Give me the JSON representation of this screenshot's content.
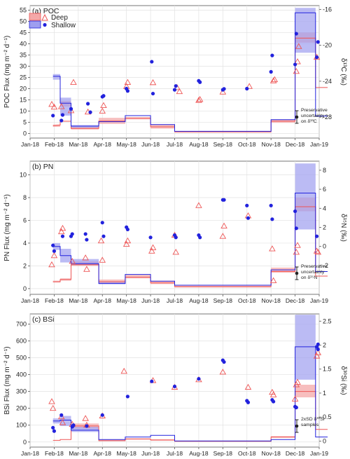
{
  "legend": {
    "deep_label": "Deep",
    "shallow_label": "Shallow",
    "colors": {
      "deep": "#ee5555",
      "shallow": "#2222dd",
      "deep_fill": "#f4a8a8",
      "shallow_fill": "#9e9ef0"
    }
  },
  "months": [
    "Jan-18",
    "Feb-18",
    "Mar-18",
    "Apr-18",
    "May-18",
    "Jun-18",
    "Jul-18",
    "Aug-18",
    "Sep-18",
    "Oct-18",
    "Nov-18",
    "Dec-18",
    "Jan-19"
  ],
  "chart_data": [
    {
      "type": "scatter",
      "panel_label": "(a) POC",
      "ylabel": "POC Flux (mg m⁻² d⁻¹)",
      "y2label": "δ¹³C (‰)",
      "ylim": [
        -2,
        57
      ],
      "yticks": [
        0,
        5,
        10,
        15,
        20,
        25,
        30,
        35,
        40,
        45,
        50,
        55
      ],
      "y2lim": [
        -30.33,
        -15.58
      ],
      "y2ticks": [
        -28,
        -24,
        -20,
        -16
      ],
      "note": [
        "Preservative",
        "uncertainty",
        "on δ¹³C"
      ],
      "flux_deep": [
        [
          0.95,
          3.5
        ],
        [
          1.25,
          3.8
        ],
        [
          1.25,
          5.5
        ],
        [
          1.7,
          5.5
        ],
        [
          1.7,
          2.3
        ],
        [
          2.85,
          2.3
        ],
        [
          2.85,
          5.6
        ],
        [
          3.95,
          5.6
        ],
        [
          3.95,
          6.8
        ],
        [
          5.0,
          6.8
        ],
        [
          5.0,
          3.0
        ],
        [
          6.0,
          3.0
        ],
        [
          6.0,
          0.8
        ],
        [
          10.0,
          0.8
        ],
        [
          10.0,
          5.5
        ],
        [
          11.0,
          5.5
        ],
        [
          11.0,
          42.5
        ],
        [
          11.85,
          42.5
        ],
        [
          11.85,
          20.5
        ],
        [
          12.35,
          20.5
        ]
      ],
      "flux_shallow": [
        [
          0.95,
          25.5
        ],
        [
          1.25,
          25.5
        ],
        [
          1.25,
          13.5
        ],
        [
          1.7,
          13.5
        ],
        [
          1.7,
          3.3
        ],
        [
          2.85,
          3.3
        ],
        [
          2.85,
          5.3
        ],
        [
          3.95,
          5.3
        ],
        [
          3.95,
          8.0
        ],
        [
          5.0,
          8.0
        ],
        [
          5.0,
          4.0
        ],
        [
          6.0,
          4.0
        ],
        [
          6.0,
          1.0
        ],
        [
          10.0,
          1.0
        ],
        [
          10.0,
          6.2
        ],
        [
          11.0,
          6.2
        ],
        [
          11.0,
          53.8
        ],
        [
          11.85,
          53.8
        ],
        [
          11.85,
          7.8
        ],
        [
          12.35,
          7.8
        ]
      ],
      "bands_deep": [
        [
          0.95,
          1.25,
          3.0,
          4.0
        ],
        [
          1.25,
          1.7,
          12.0,
          14.5
        ],
        [
          1.7,
          2.85,
          1.8,
          3.0
        ],
        [
          2.85,
          3.95,
          4.3,
          7.0
        ],
        [
          3.95,
          5.0,
          6.3,
          7.3
        ],
        [
          5.0,
          6.0,
          2.2,
          4.0
        ],
        [
          6.0,
          10.0,
          0.4,
          1.1
        ],
        [
          10.0,
          11.0,
          4.8,
          6.3
        ],
        [
          11.0,
          11.85,
          40.5,
          45.0
        ]
      ],
      "bands_shallow": [
        [
          0.95,
          1.25,
          24.0,
          26.5
        ],
        [
          1.25,
          1.7,
          8.0,
          16.0
        ],
        [
          1.7,
          2.85,
          2.6,
          3.8
        ],
        [
          11.0,
          11.85,
          36.0,
          56.0
        ]
      ],
      "iso_deep": [
        [
          0.9,
          13.0
        ],
        [
          1.0,
          11.8
        ],
        [
          1.3,
          12.0
        ],
        [
          1.7,
          10.2
        ],
        [
          1.8,
          22.8
        ],
        [
          2.4,
          9.6
        ],
        [
          3.0,
          10.0
        ],
        [
          3.05,
          12.5
        ],
        [
          4.0,
          21.0
        ],
        [
          4.05,
          22.8
        ],
        [
          5.1,
          22.7
        ],
        [
          6.1,
          20.5
        ],
        [
          6.2,
          18.7
        ],
        [
          7.0,
          14.8
        ],
        [
          7.05,
          15.2
        ],
        [
          8.0,
          18.5
        ],
        [
          9.1,
          21.0
        ],
        [
          10.1,
          23.5
        ],
        [
          10.15,
          24.0
        ],
        [
          11.05,
          27.7
        ],
        [
          11.1,
          32.0
        ],
        [
          11.15,
          38.8
        ],
        [
          11.9,
          34.0
        ]
      ],
      "iso_shallow": [
        [
          0.95,
          8.0
        ],
        [
          1.3,
          5.8
        ],
        [
          1.35,
          8.3
        ],
        [
          1.7,
          11.0
        ],
        [
          2.4,
          13.3
        ],
        [
          2.5,
          9.5
        ],
        [
          3.0,
          16.4
        ],
        [
          3.05,
          16.8
        ],
        [
          4.0,
          20.0
        ],
        [
          4.05,
          19.0
        ],
        [
          5.05,
          32.0
        ],
        [
          5.1,
          17.8
        ],
        [
          6.0,
          19.5
        ],
        [
          6.05,
          21.2
        ],
        [
          7.0,
          23.5
        ],
        [
          7.05,
          22.9
        ],
        [
          8.0,
          19.5
        ],
        [
          8.05,
          19.9
        ],
        [
          9.0,
          20.0
        ],
        [
          10.0,
          27.5
        ],
        [
          10.05,
          34.8
        ],
        [
          11.0,
          30.8
        ],
        [
          11.05,
          44.5
        ],
        [
          11.9,
          34.0
        ],
        [
          11.95,
          40.8
        ]
      ]
    },
    {
      "type": "scatter",
      "panel_label": "(b) PN",
      "ylabel": "PN Flux (mg m⁻² d⁻¹)",
      "y2label": "δ¹⁵N (‰)",
      "ylim": [
        -0.5,
        11.2
      ],
      "yticks": [
        0,
        2,
        4,
        6,
        8,
        10
      ],
      "y2lim": [
        -5.03,
        8.95
      ],
      "y2ticks": [
        -2,
        0,
        2,
        4,
        6,
        8
      ],
      "note": [
        "Preservative",
        "uncertainty",
        "on δ¹⁵N"
      ],
      "flux_deep": [
        [
          0.95,
          0.6
        ],
        [
          1.25,
          0.6
        ],
        [
          1.25,
          0.8
        ],
        [
          1.7,
          0.8
        ],
        [
          1.7,
          2.1
        ],
        [
          2.85,
          2.1
        ],
        [
          2.85,
          0.6
        ],
        [
          3.95,
          0.6
        ],
        [
          3.95,
          1.0
        ],
        [
          5.0,
          1.0
        ],
        [
          5.0,
          0.5
        ],
        [
          6.0,
          0.5
        ],
        [
          6.0,
          0.18
        ],
        [
          10.0,
          0.18
        ],
        [
          10.0,
          1.5
        ],
        [
          11.0,
          1.5
        ],
        [
          11.0,
          7.2
        ],
        [
          11.85,
          7.2
        ],
        [
          11.85,
          1.1
        ],
        [
          12.35,
          1.1
        ]
      ],
      "flux_shallow": [
        [
          0.95,
          3.7
        ],
        [
          1.25,
          3.7
        ],
        [
          1.25,
          2.9
        ],
        [
          1.7,
          2.9
        ],
        [
          1.7,
          2.2
        ],
        [
          2.85,
          2.2
        ],
        [
          2.85,
          0.45
        ],
        [
          3.95,
          0.45
        ],
        [
          3.95,
          1.25
        ],
        [
          5.0,
          1.25
        ],
        [
          5.0,
          0.65
        ],
        [
          6.0,
          0.65
        ],
        [
          6.0,
          0.3
        ],
        [
          10.0,
          0.3
        ],
        [
          10.0,
          1.65
        ],
        [
          11.0,
          1.65
        ],
        [
          11.0,
          8.4
        ],
        [
          11.85,
          8.4
        ],
        [
          11.85,
          1.5
        ],
        [
          12.35,
          1.5
        ]
      ],
      "bands_deep": [
        [
          0.95,
          1.25,
          0.55,
          0.7
        ],
        [
          1.25,
          1.7,
          0.7,
          0.9
        ],
        [
          1.7,
          2.85,
          2.0,
          2.4
        ],
        [
          2.85,
          3.95,
          0.5,
          0.8
        ],
        [
          3.95,
          5.0,
          0.9,
          1.2
        ],
        [
          5.0,
          6.0,
          0.4,
          0.7
        ],
        [
          6.0,
          10.0,
          0.1,
          0.25
        ],
        [
          10.0,
          11.0,
          1.4,
          1.85
        ],
        [
          11.0,
          11.85,
          6.8,
          8.0
        ]
      ],
      "bands_shallow": [
        [
          0.95,
          1.25,
          3.4,
          4.0
        ],
        [
          1.25,
          1.7,
          2.3,
          3.5
        ],
        [
          1.7,
          2.85,
          2.1,
          2.6
        ],
        [
          2.85,
          3.95,
          0.4,
          0.6
        ],
        [
          11.0,
          11.85,
          5.2,
          11.0
        ]
      ],
      "iso_deep": [
        [
          0.9,
          2.1
        ],
        [
          1.0,
          2.9
        ],
        [
          1.3,
          5.0
        ],
        [
          1.35,
          5.3
        ],
        [
          1.75,
          2.4
        ],
        [
          2.3,
          2.7
        ],
        [
          2.35,
          1.7
        ],
        [
          2.95,
          4.2
        ],
        [
          3.0,
          2.5
        ],
        [
          4.0,
          3.9
        ],
        [
          4.05,
          4.2
        ],
        [
          5.05,
          3.3
        ],
        [
          5.1,
          3.6
        ],
        [
          6.0,
          4.7
        ],
        [
          6.05,
          3.2
        ],
        [
          7.0,
          7.3
        ],
        [
          8.0,
          4.6
        ],
        [
          8.05,
          5.5
        ],
        [
          9.05,
          6.4
        ],
        [
          10.05,
          3.5
        ],
        [
          10.1,
          0.7
        ],
        [
          11.05,
          3.2
        ],
        [
          11.1,
          3.8
        ],
        [
          11.9,
          3.3
        ],
        [
          11.95,
          3.2
        ]
      ],
      "iso_shallow": [
        [
          0.95,
          3.8
        ],
        [
          1.0,
          3.3
        ],
        [
          1.35,
          4.6
        ],
        [
          1.7,
          4.6
        ],
        [
          1.75,
          4.8
        ],
        [
          2.3,
          4.8
        ],
        [
          2.35,
          4.3
        ],
        [
          3.0,
          5.8
        ],
        [
          3.05,
          4.6
        ],
        [
          4.0,
          5.4
        ],
        [
          4.05,
          5.2
        ],
        [
          5.0,
          4.5
        ],
        [
          6.0,
          4.7
        ],
        [
          6.05,
          4.5
        ],
        [
          7.0,
          4.7
        ],
        [
          7.05,
          4.5
        ],
        [
          8.0,
          7.8
        ],
        [
          8.05,
          7.8
        ],
        [
          9.0,
          7.3
        ],
        [
          9.05,
          6.2
        ],
        [
          10.0,
          7.3
        ],
        [
          10.05,
          6.1
        ],
        [
          11.0,
          6.8
        ],
        [
          11.05,
          5.3
        ],
        [
          11.9,
          4.6
        ]
      ]
    },
    {
      "type": "scatter",
      "panel_label": "(c) BSi",
      "ylabel": "BSi Flux (mg m⁻² d⁻¹)",
      "y2label": "δ³⁰Si (‰)",
      "ylim": [
        -30,
        760
      ],
      "yticks": [
        0,
        100,
        200,
        300,
        400,
        500,
        600,
        700
      ],
      "y2lim": [
        -0.125,
        2.65
      ],
      "y2ticks": [
        0,
        0.5,
        1.0,
        1.5,
        2.0,
        2.5
      ],
      "note": [
        "2xSD δ³⁰Si",
        "samples"
      ],
      "flux_deep": [
        [
          0.95,
          10
        ],
        [
          1.25,
          10
        ],
        [
          1.25,
          15
        ],
        [
          1.7,
          15
        ],
        [
          1.7,
          95
        ],
        [
          2.85,
          95
        ],
        [
          2.85,
          8
        ],
        [
          3.95,
          8
        ],
        [
          3.95,
          18
        ],
        [
          5.0,
          18
        ],
        [
          5.0,
          12
        ],
        [
          6.0,
          12
        ],
        [
          6.0,
          4
        ],
        [
          10.0,
          4
        ],
        [
          10.0,
          30
        ],
        [
          11.0,
          30
        ],
        [
          11.0,
          300
        ],
        [
          11.85,
          300
        ],
        [
          11.85,
          75
        ],
        [
          12.35,
          75
        ]
      ],
      "flux_shallow": [
        [
          0.95,
          125
        ],
        [
          1.25,
          125
        ],
        [
          1.25,
          130
        ],
        [
          1.7,
          130
        ],
        [
          1.7,
          70
        ],
        [
          2.85,
          70
        ],
        [
          2.85,
          15
        ],
        [
          3.95,
          15
        ],
        [
          3.95,
          30
        ],
        [
          5.0,
          30
        ],
        [
          5.0,
          40
        ],
        [
          6.0,
          40
        ],
        [
          6.0,
          6
        ],
        [
          10.0,
          6
        ],
        [
          10.0,
          15
        ],
        [
          11.0,
          15
        ],
        [
          11.0,
          565
        ],
        [
          11.85,
          565
        ],
        [
          11.85,
          30
        ],
        [
          12.35,
          30
        ]
      ],
      "bands_deep": [
        [
          1.7,
          2.85,
          80,
          110
        ],
        [
          2.85,
          3.95,
          5,
          15
        ],
        [
          3.95,
          5.0,
          15,
          22
        ],
        [
          5.0,
          6.0,
          8,
          16
        ],
        [
          10.0,
          11.0,
          25,
          35
        ],
        [
          11.0,
          11.85,
          265,
          340
        ]
      ],
      "bands_shallow": [
        [
          0.95,
          1.25,
          110,
          140
        ],
        [
          1.25,
          1.7,
          95,
          155
        ],
        [
          1.7,
          2.85,
          60,
          90
        ],
        [
          11.0,
          11.85,
          370,
          755
        ]
      ],
      "iso_deep": [
        [
          0.9,
          240
        ],
        [
          0.95,
          200
        ],
        [
          1.3,
          150
        ],
        [
          1.35,
          115
        ],
        [
          1.75,
          105
        ],
        [
          2.3,
          140
        ],
        [
          2.35,
          100
        ],
        [
          3.0,
          155
        ],
        [
          3.9,
          420
        ],
        [
          5.1,
          365
        ],
        [
          6.0,
          325
        ],
        [
          7.0,
          370
        ],
        [
          8.0,
          415
        ],
        [
          9.05,
          325
        ],
        [
          10.05,
          295
        ],
        [
          10.1,
          280
        ],
        [
          11.0,
          255
        ],
        [
          11.05,
          340
        ],
        [
          11.1,
          355
        ],
        [
          11.9,
          510
        ],
        [
          11.95,
          530
        ]
      ],
      "iso_shallow": [
        [
          0.95,
          85
        ],
        [
          1.0,
          65
        ],
        [
          1.3,
          160
        ],
        [
          1.75,
          90
        ],
        [
          1.8,
          100
        ],
        [
          2.35,
          95
        ],
        [
          3.0,
          160
        ],
        [
          4.05,
          270
        ],
        [
          5.05,
          360
        ],
        [
          6.0,
          330
        ],
        [
          7.0,
          375
        ],
        [
          8.0,
          485
        ],
        [
          8.05,
          475
        ],
        [
          9.0,
          245
        ],
        [
          9.05,
          235
        ],
        [
          10.05,
          250
        ],
        [
          10.1,
          240
        ],
        [
          11.0,
          210
        ],
        [
          11.05,
          205
        ],
        [
          11.9,
          565
        ],
        [
          11.95,
          580
        ],
        [
          11.95,
          550
        ]
      ]
    }
  ]
}
